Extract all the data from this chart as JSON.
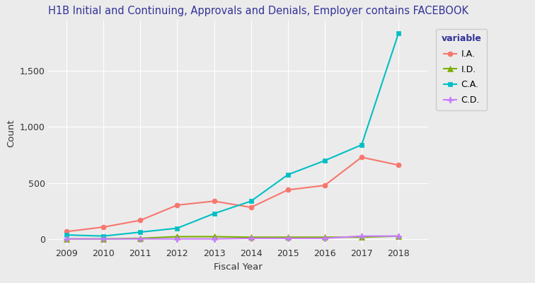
{
  "title": "H1B Initial and Continuing, Approvals and Denials, Employer contains FACEBOOK",
  "xlabel": "Fiscal Year",
  "ylabel": "Count",
  "legend_title": "variable",
  "years": [
    2009,
    2010,
    2011,
    2012,
    2013,
    2014,
    2015,
    2016,
    2017,
    2018
  ],
  "series": {
    "I.A.": {
      "values": [
        70,
        110,
        170,
        305,
        340,
        285,
        440,
        480,
        730,
        660
      ],
      "color": "#F8766D",
      "marker": "o",
      "markersize": 5
    },
    "I.D.": {
      "values": [
        5,
        5,
        10,
        25,
        25,
        20,
        20,
        20,
        20,
        30
      ],
      "color": "#7CAE00",
      "marker": "^",
      "markersize": 6
    },
    "C.A.": {
      "values": [
        40,
        30,
        65,
        100,
        230,
        340,
        575,
        700,
        840,
        1830
      ],
      "color": "#00BFC4",
      "marker": "s",
      "markersize": 5
    },
    "C.D.": {
      "values": [
        5,
        5,
        5,
        5,
        5,
        10,
        10,
        10,
        30,
        30
      ],
      "color": "#C77CFF",
      "marker": "P",
      "markersize": 6
    }
  },
  "background_color": "#EBEBEB",
  "grid_color": "#FFFFFF",
  "ylim": [
    -60,
    1950
  ],
  "yticks": [
    0,
    500,
    1000,
    1500
  ],
  "xlim": [
    2008.5,
    2018.8
  ],
  "title_fontsize": 10.5,
  "axis_label_fontsize": 9.5,
  "tick_fontsize": 9,
  "legend_fontsize": 9,
  "title_color": "#333399"
}
